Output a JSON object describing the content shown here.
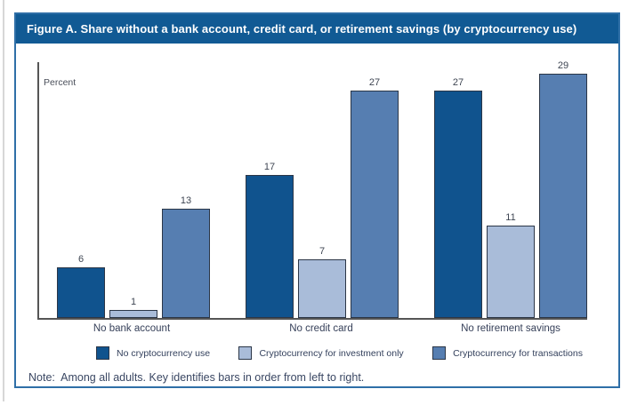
{
  "figure": {
    "title": "Figure A. Share without a bank account, credit card, or retirement savings (by cryptocurrency use)",
    "axis_label": "Percent",
    "note": "Note:  Among all adults. Key identifies bars in order from left to right."
  },
  "colors": {
    "frame_border": "#2f6fa7",
    "title_bg": "#115a94",
    "title_text": "#ffffff",
    "axis": "#555555",
    "bar_border": "#2b3647",
    "bar_no_crypto": "#10538e",
    "bar_investment_only": "#a9bcd9",
    "bar_transactions": "#567eb1"
  },
  "chart_data": {
    "type": "bar",
    "title": "Figure A. Share without a bank account, credit card, or retirement savings (by cryptocurrency use)",
    "xlabel": "",
    "ylabel": "Percent",
    "ylim": [
      0,
      30
    ],
    "grid": false,
    "legend_position": "bottom",
    "value_labels": true,
    "categories": [
      "No bank account",
      "No credit card",
      "No retirement savings"
    ],
    "series": [
      {
        "name": "No cryptocurrency use",
        "color": "#10538e",
        "values": [
          6,
          17,
          27
        ]
      },
      {
        "name": "Cryptocurrency for investment only",
        "color": "#a9bcd9",
        "values": [
          1,
          7,
          11
        ]
      },
      {
        "name": "Cryptocurrency for transactions",
        "color": "#567eb1",
        "values": [
          13,
          27,
          29
        ]
      }
    ]
  }
}
